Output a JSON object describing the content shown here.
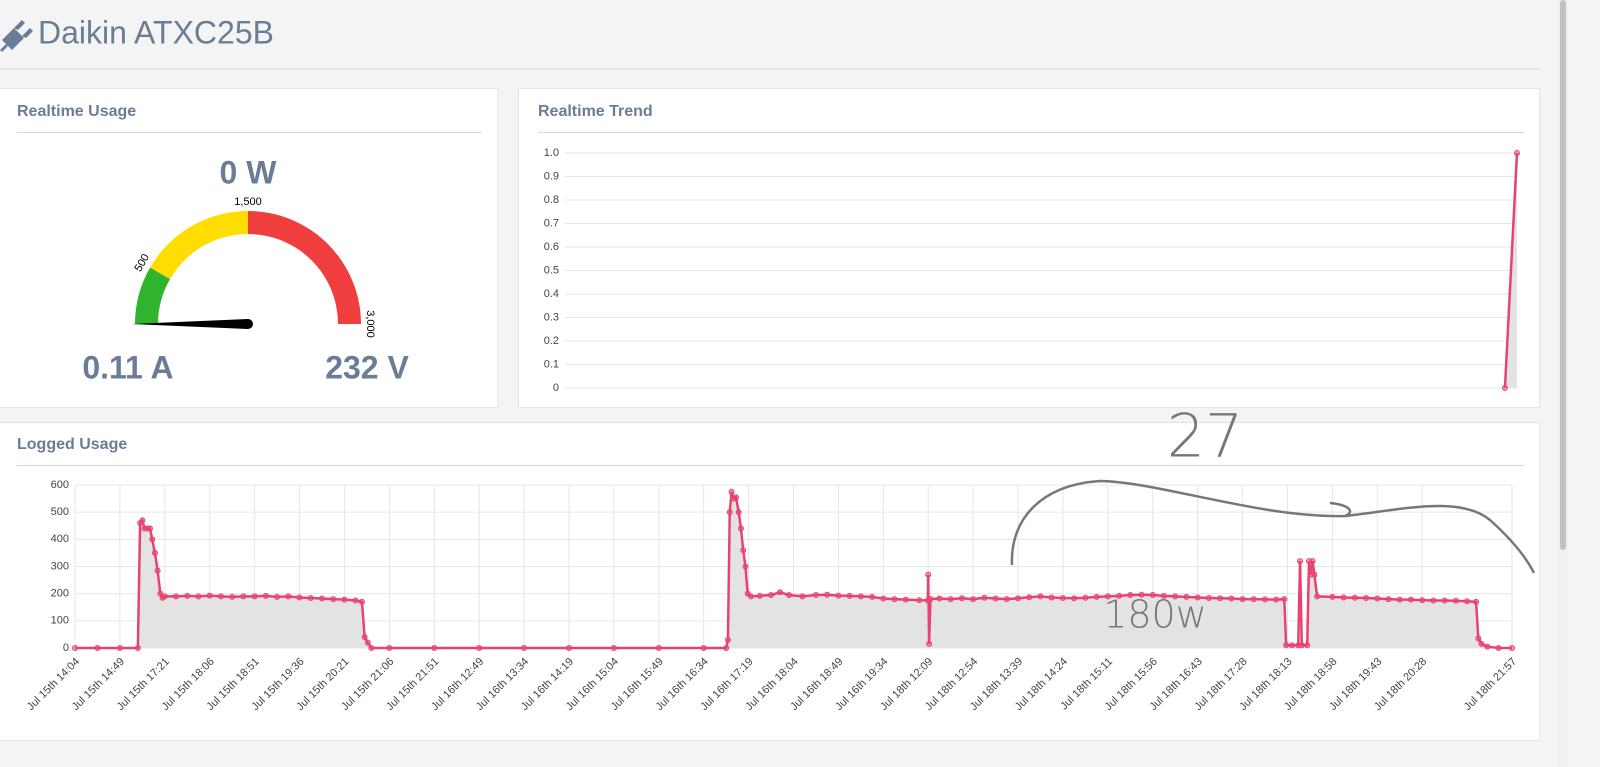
{
  "header": {
    "title": "Daikin ATXC25B"
  },
  "chart_data": [
    {
      "type": "gauge",
      "title": "Realtime Usage",
      "values": [
        0
      ],
      "value_labels": [
        "0 W"
      ],
      "readouts": [
        "0.11 A",
        "232 V"
      ],
      "ylim": [
        0,
        3000
      ],
      "yticks": [
        500,
        {
          "value": 1500,
          "label": "1,500"
        },
        {
          "value": 3000,
          "label": "3,000"
        }
      ],
      "bands": [
        {
          "from": 0,
          "to": 500,
          "color": "#30b32d"
        },
        {
          "from": 500,
          "to": 1500,
          "color": "#ffdd00"
        },
        {
          "from": 1500,
          "to": 3000,
          "color": "#f03e3e"
        }
      ],
      "needle_color": "#000000"
    },
    {
      "type": "line",
      "title": "Realtime Trend",
      "color": "#e8436f",
      "fill": "#e3e3e3",
      "x": [
        78,
        79
      ],
      "values": [
        0,
        1
      ],
      "xlim": [
        0,
        79
      ],
      "ylim": [
        0,
        1
      ],
      "yticks": [
        0,
        0.1,
        0.2,
        0.3,
        0.4,
        0.5,
        0.6,
        0.7,
        0.8,
        0.9,
        {
          "value": 1,
          "label": "1.0"
        }
      ],
      "grid": true
    },
    {
      "type": "line",
      "title": "Logged Usage",
      "color": "#e8436f",
      "fill": "#e3e3e3",
      "xlim": [
        0,
        32
      ],
      "ylim": [
        0,
        600
      ],
      "yticks": [
        0,
        100,
        200,
        300,
        400,
        500,
        600
      ],
      "grid": true,
      "xticks": [
        {
          "value": 0,
          "label": "Jul 15th 14:04"
        },
        {
          "value": 1,
          "label": "Jul 15th 14:49"
        },
        {
          "value": 2,
          "label": "Jul 15th 17:21"
        },
        {
          "value": 3,
          "label": "Jul 15th 18:06"
        },
        {
          "value": 4,
          "label": "Jul 15th 18:51"
        },
        {
          "value": 5,
          "label": "Jul 15th 19:36"
        },
        {
          "value": 6,
          "label": "Jul 15th 20:21"
        },
        {
          "value": 7,
          "label": "Jul 15th 21:06"
        },
        {
          "value": 8,
          "label": "Jul 15th 21:51"
        },
        {
          "value": 9,
          "label": "Jul 16th 12:49"
        },
        {
          "value": 10,
          "label": "Jul 16th 13:34"
        },
        {
          "value": 11,
          "label": "Jul 16th 14:19"
        },
        {
          "value": 12,
          "label": "Jul 16th 15:04"
        },
        {
          "value": 13,
          "label": "Jul 16th 15:49"
        },
        {
          "value": 14,
          "label": "Jul 16th 16:34"
        },
        {
          "value": 15,
          "label": "Jul 16th 17:19"
        },
        {
          "value": 16,
          "label": "Jul 16th 18:04"
        },
        {
          "value": 17,
          "label": "Jul 16th 18:49"
        },
        {
          "value": 18,
          "label": "Jul 16th 19:34"
        },
        {
          "value": 19,
          "label": "Jul 18th 12:09"
        },
        {
          "value": 20,
          "label": "Jul 18th 12:54"
        },
        {
          "value": 21,
          "label": "Jul 18th 13:39"
        },
        {
          "value": 22,
          "label": "Jul 18th 14:24"
        },
        {
          "value": 23,
          "label": "Jul 18th 15:11"
        },
        {
          "value": 24,
          "label": "Jul 18th 15:56"
        },
        {
          "value": 25,
          "label": "Jul 18th 16:43"
        },
        {
          "value": 26,
          "label": "Jul 18th 17:28"
        },
        {
          "value": 27,
          "label": "Jul 18th 18:13"
        },
        {
          "value": 28,
          "label": "Jul 18th 18:58"
        },
        {
          "value": 29,
          "label": "Jul 18th 19:43"
        },
        {
          "value": 30,
          "label": "Jul 18th 20:28"
        },
        {
          "value": 32,
          "label": "Jul 18th 21:57"
        }
      ],
      "x": [
        0,
        0.5,
        1,
        1.4,
        1.45,
        1.5,
        1.55,
        1.62,
        1.67,
        1.72,
        1.78,
        1.84,
        1.9,
        1.95,
        2,
        2.25,
        2.5,
        2.75,
        3,
        3.25,
        3.5,
        3.75,
        4,
        4.25,
        4.5,
        4.75,
        5,
        5.25,
        5.5,
        5.75,
        6,
        6.25,
        6.39,
        6.45,
        6.52,
        6.6,
        7,
        8,
        9,
        10,
        11,
        12,
        13,
        14,
        14.5,
        14.54,
        14.58,
        14.62,
        14.67,
        14.72,
        14.78,
        14.83,
        14.88,
        14.93,
        14.98,
        15.05,
        15.25,
        15.5,
        15.7,
        15.9,
        16.2,
        16.5,
        16.75,
        17,
        17.25,
        17.5,
        17.75,
        18,
        18.25,
        18.5,
        18.8,
        18.99,
        19,
        19.02,
        19.05,
        19.25,
        19.5,
        19.75,
        20,
        20.25,
        20.5,
        20.75,
        21,
        21.25,
        21.5,
        21.75,
        22,
        22.25,
        22.5,
        22.75,
        23,
        23.25,
        23.5,
        23.75,
        24,
        24.25,
        24.5,
        24.75,
        25,
        25.25,
        25.5,
        25.75,
        26,
        26.25,
        26.5,
        26.75,
        26.93,
        26.97,
        27.1,
        27.24,
        27.28,
        27.32,
        27.44,
        27.48,
        27.52,
        27.56,
        27.6,
        27.66,
        28,
        28.25,
        28.5,
        28.75,
        29,
        29.25,
        29.5,
        29.75,
        30,
        30.25,
        30.5,
        30.75,
        31,
        31.2,
        31.25,
        31.32,
        31.45,
        31.7,
        32
      ],
      "values": [
        0,
        0,
        0,
        0,
        460,
        470,
        440,
        440,
        440,
        400,
        350,
        285,
        200,
        185,
        190,
        190,
        192,
        190,
        193,
        190,
        188,
        190,
        190,
        192,
        188,
        190,
        186,
        184,
        182,
        180,
        178,
        175,
        170,
        40,
        20,
        0,
        0,
        0,
        0,
        0,
        0,
        0,
        0,
        0,
        0,
        30,
        500,
        575,
        550,
        555,
        500,
        440,
        360,
        300,
        200,
        190,
        192,
        195,
        205,
        195,
        190,
        195,
        196,
        193,
        192,
        190,
        188,
        182,
        180,
        178,
        176,
        175,
        270,
        15,
        180,
        182,
        180,
        183,
        180,
        185,
        182,
        180,
        183,
        187,
        190,
        186,
        184,
        183,
        185,
        188,
        190,
        192,
        195,
        196,
        195,
        192,
        190,
        188,
        186,
        184,
        183,
        182,
        180,
        180,
        179,
        178,
        180,
        10,
        10,
        10,
        320,
        10,
        10,
        320,
        270,
        320,
        270,
        190,
        188,
        186,
        185,
        184,
        182,
        180,
        178,
        178,
        176,
        175,
        175,
        174,
        172,
        170,
        35,
        15,
        5,
        0,
        0
      ],
      "annotations": [
        "27",
        "180w"
      ]
    }
  ]
}
